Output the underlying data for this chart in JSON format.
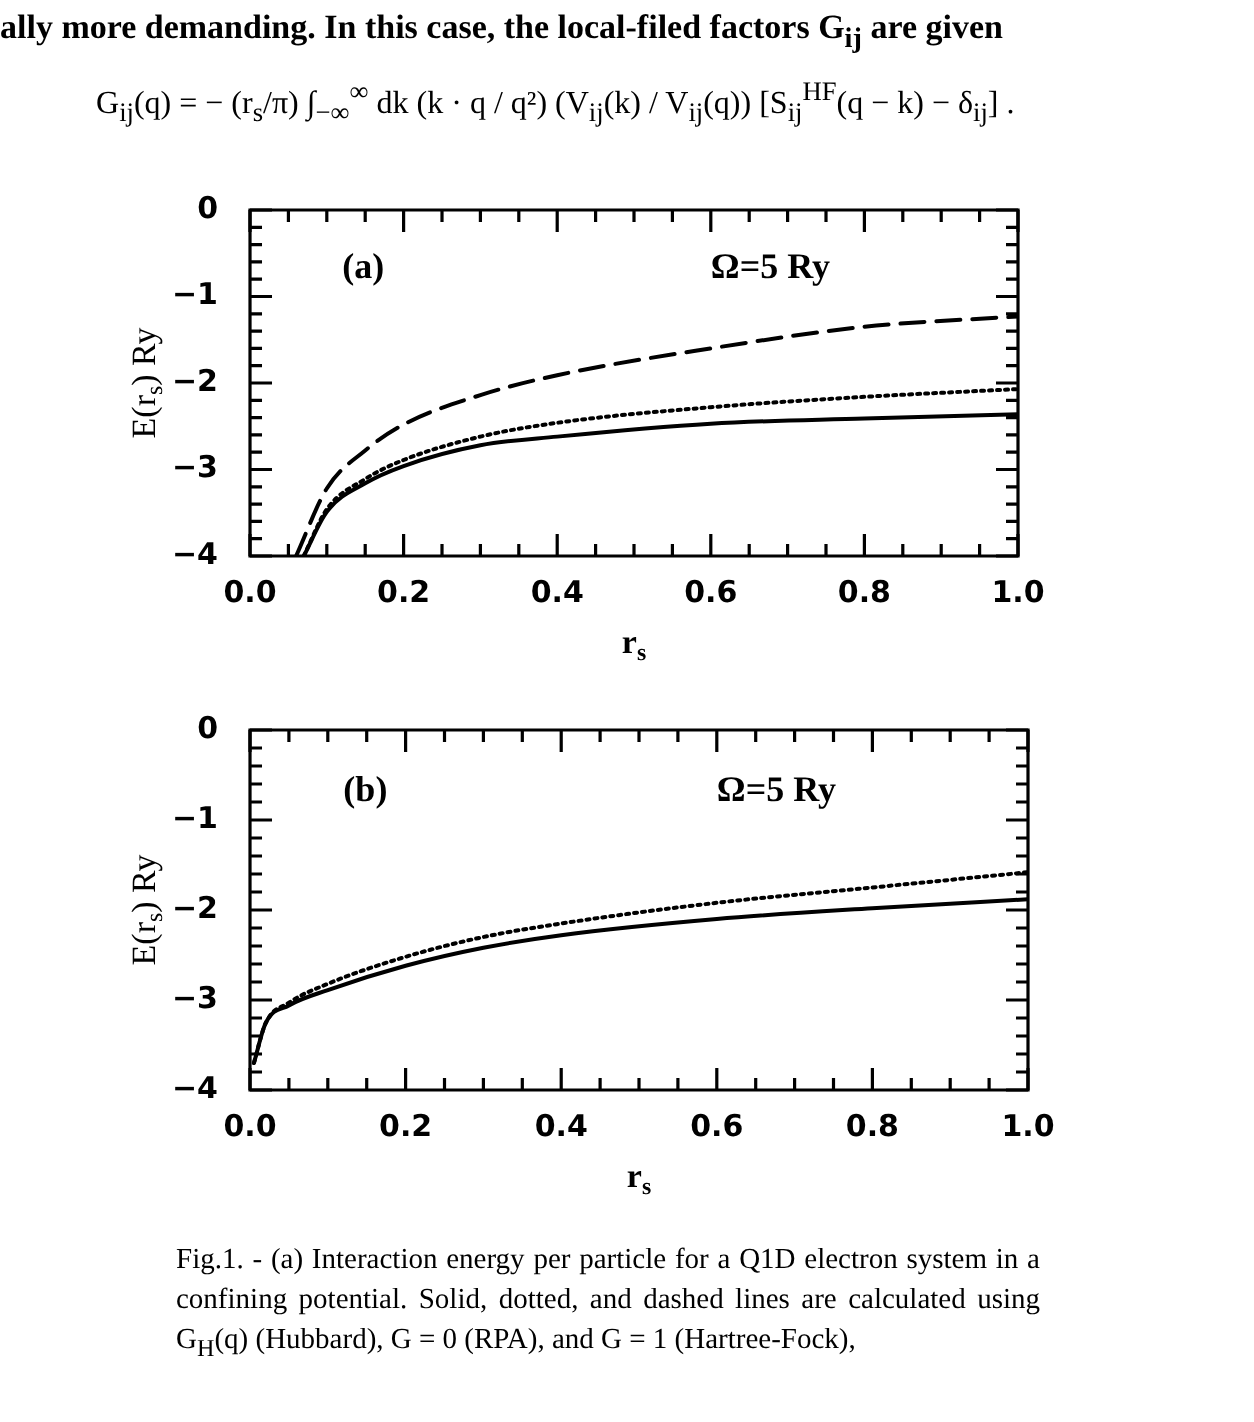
{
  "chart_data": [
    {
      "type": "line",
      "xlabel": "r$_{s}$",
      "ylabel": "E(r$_{s}$) Ry",
      "grid": false,
      "legend": false,
      "marker": "none",
      "annotations": [
        "ally more demanding. In this case, the local-filed factors G$_{ij}$ are given",
        "G$_{ij}$(q) = − (r$_{s}$/π) ∫$_{−∞}$$^{∞}$ dk (k · q / q²) (V$_{ij}$(k) / V$_{ij}$(q)) [S$_{ij}$$^{HF}$(q − k) − δ$_{ij}$] .",
        "(a)",
        "Ω=5 Ry"
      ],
      "xlim": [
        0,
        1
      ],
      "ylim": [
        -4,
        0
      ],
      "xticks": [
        {
          "value": 0,
          "label": "0.0"
        },
        {
          "value": 0.05,
          "label": null
        },
        {
          "value": 0.1,
          "label": null
        },
        {
          "value": 0.15,
          "label": null
        },
        {
          "value": 0.2,
          "label": "0.2"
        },
        {
          "value": 0.25,
          "label": null
        },
        {
          "value": 0.3,
          "label": null
        },
        {
          "value": 0.35,
          "label": null
        },
        {
          "value": 0.4,
          "label": "0.4"
        },
        {
          "value": 0.45,
          "label": null
        },
        {
          "value": 0.5,
          "label": null
        },
        {
          "value": 0.55,
          "label": null
        },
        {
          "value": 0.6,
          "label": "0.6"
        },
        {
          "value": 0.65,
          "label": null
        },
        {
          "value": 0.7,
          "label": null
        },
        {
          "value": 0.75,
          "label": null
        },
        {
          "value": 0.8,
          "label": "0.8"
        },
        {
          "value": 0.85,
          "label": null
        },
        {
          "value": 0.9,
          "label": null
        },
        {
          "value": 0.95,
          "label": null
        },
        {
          "value": 1,
          "label": "1.0"
        }
      ],
      "yticks": [
        {
          "value": 0,
          "label": "0"
        },
        {
          "value": -0.2,
          "label": null
        },
        {
          "value": -0.4,
          "label": null
        },
        {
          "value": -0.6,
          "label": null
        },
        {
          "value": -0.8,
          "label": null
        },
        {
          "value": -1,
          "label": "−1"
        },
        {
          "value": -1.2,
          "label": null
        },
        {
          "value": -1.4,
          "label": null
        },
        {
          "value": -1.6,
          "label": null
        },
        {
          "value": -1.8,
          "label": null
        },
        {
          "value": -2,
          "label": "−2"
        },
        {
          "value": -2.2,
          "label": null
        },
        {
          "value": -2.4,
          "label": null
        },
        {
          "value": -2.6,
          "label": null
        },
        {
          "value": -2.8,
          "label": null
        },
        {
          "value": -3,
          "label": "−3"
        },
        {
          "value": -3.2,
          "label": null
        },
        {
          "value": -3.4,
          "label": null
        },
        {
          "value": -3.6,
          "label": null
        },
        {
          "value": -3.8,
          "label": null
        },
        {
          "value": -4,
          "label": "−4"
        }
      ],
      "series": [
        {
          "color": "#000000",
          "line_style": "solid",
          "x": [
            0.07,
            0.1,
            0.15,
            0.2,
            0.3,
            0.4,
            0.6,
            0.8,
            1.0
          ],
          "values": [
            -4.0,
            -3.49,
            -3.16,
            -2.96,
            -2.72,
            -2.62,
            -2.47,
            -2.41,
            -2.36
          ]
        },
        {
          "color": "#000000",
          "line_style": "dotted",
          "x": [
            0.07,
            0.1,
            0.15,
            0.2,
            0.3,
            0.4,
            0.6,
            0.8,
            1.0
          ],
          "values": [
            -4.0,
            -3.46,
            -3.11,
            -2.89,
            -2.62,
            -2.46,
            -2.28,
            -2.16,
            -2.07
          ]
        },
        {
          "color": "#000000",
          "line_style": "dashed",
          "x": [
            0.06,
            0.1,
            0.15,
            0.2,
            0.3,
            0.4,
            0.6,
            0.8,
            1.0
          ],
          "values": [
            -4.0,
            -3.22,
            -2.78,
            -2.48,
            -2.14,
            -1.91,
            -1.6,
            -1.35,
            -1.23
          ]
        }
      ]
    },
    {
      "type": "line",
      "xlabel": "r$_{s}$",
      "ylabel": "E(r$_{s}$) Ry",
      "grid": false,
      "legend": false,
      "marker": "none",
      "annotations": [
        "(b)",
        "Ω=5 Ry",
        "Fig.1.   - (a) Interaction energy per particle for a Q1D electron system in a confining potential. Solid, dotted, and dashed lines are calculated using G$_{H}$(q) (Hubbard), G = 0 (RPA), and G = 1 (Hartree-Fock),"
      ],
      "xlim": [
        0,
        1
      ],
      "ylim": [
        -4,
        0
      ],
      "xticks": [
        {
          "value": 0,
          "label": "0.0"
        },
        {
          "value": 0.05,
          "label": null
        },
        {
          "value": 0.1,
          "label": null
        },
        {
          "value": 0.15,
          "label": null
        },
        {
          "value": 0.2,
          "label": "0.2"
        },
        {
          "value": 0.25,
          "label": null
        },
        {
          "value": 0.3,
          "label": null
        },
        {
          "value": 0.35,
          "label": null
        },
        {
          "value": 0.4,
          "label": "0.4"
        },
        {
          "value": 0.45,
          "label": null
        },
        {
          "value": 0.5,
          "label": null
        },
        {
          "value": 0.55,
          "label": null
        },
        {
          "value": 0.6,
          "label": "0.6"
        },
        {
          "value": 0.65,
          "label": null
        },
        {
          "value": 0.7,
          "label": null
        },
        {
          "value": 0.75,
          "label": null
        },
        {
          "value": 0.8,
          "label": "0.8"
        },
        {
          "value": 0.85,
          "label": null
        },
        {
          "value": 0.9,
          "label": null
        },
        {
          "value": 0.95,
          "label": null
        },
        {
          "value": 1,
          "label": "1.0"
        }
      ],
      "yticks": [
        {
          "value": 0,
          "label": "0"
        },
        {
          "value": -0.2,
          "label": null
        },
        {
          "value": -0.4,
          "label": null
        },
        {
          "value": -0.6,
          "label": null
        },
        {
          "value": -0.8,
          "label": null
        },
        {
          "value": -1,
          "label": "−1"
        },
        {
          "value": -1.2,
          "label": null
        },
        {
          "value": -1.4,
          "label": null
        },
        {
          "value": -1.6,
          "label": null
        },
        {
          "value": -1.8,
          "label": null
        },
        {
          "value": -2,
          "label": "−2"
        },
        {
          "value": -2.2,
          "label": null
        },
        {
          "value": -2.4,
          "label": null
        },
        {
          "value": -2.6,
          "label": null
        },
        {
          "value": -2.8,
          "label": null
        },
        {
          "value": -3,
          "label": "−3"
        },
        {
          "value": -3.2,
          "label": null
        },
        {
          "value": -3.4,
          "label": null
        },
        {
          "value": -3.6,
          "label": null
        },
        {
          "value": -3.8,
          "label": null
        },
        {
          "value": -4,
          "label": "−4"
        }
      ],
      "series": [
        {
          "color": "#000000",
          "line_style": "solid",
          "x": [
            0.005,
            0.02,
            0.05,
            0.1,
            0.2,
            0.3,
            0.4,
            0.6,
            0.8,
            1.0
          ],
          "values": [
            -3.7,
            -3.26,
            -3.06,
            -2.89,
            -2.62,
            -2.42,
            -2.28,
            -2.1,
            -1.98,
            -1.88
          ]
        },
        {
          "color": "#000000",
          "line_style": "dotted",
          "x": [
            0.005,
            0.02,
            0.05,
            0.1,
            0.2,
            0.3,
            0.4,
            0.6,
            0.8,
            1.0
          ],
          "values": [
            -3.7,
            -3.26,
            -3.03,
            -2.82,
            -2.52,
            -2.3,
            -2.15,
            -1.92,
            -1.75,
            -1.58
          ]
        }
      ]
    }
  ]
}
